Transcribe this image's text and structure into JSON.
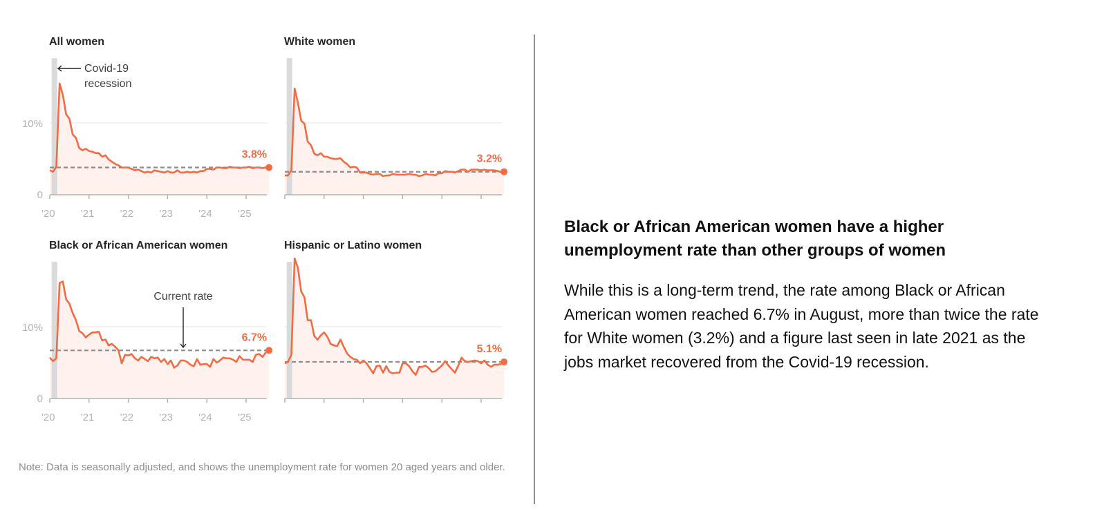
{
  "chart_data": [
    {
      "type": "line",
      "title": "All women",
      "x_start": "2020-01",
      "frequency": "monthly",
      "x_tick_labels": [
        "'20",
        "'21",
        "'22",
        "'23",
        "'24",
        "'25"
      ],
      "y_tick_labels": [
        "0",
        "10%"
      ],
      "ylim": [
        0,
        19.5
      ],
      "current_rate": 3.8,
      "current_label": "3.8%",
      "recession": [
        "2020-02",
        "2020-04"
      ],
      "annotation": [
        "Covid-19",
        "recession"
      ],
      "values": [
        3.4,
        3.2,
        3.9,
        15.5,
        13.9,
        11.2,
        10.6,
        8.4,
        7.9,
        6.5,
        6.2,
        6.4,
        6.1,
        6.0,
        5.8,
        5.8,
        5.3,
        5.5,
        4.9,
        4.6,
        4.3,
        4.1,
        3.8,
        3.8,
        3.8,
        3.6,
        3.4,
        3.5,
        3.3,
        3.1,
        3.2,
        3.1,
        3.4,
        3.3,
        3.2,
        3.1,
        3.3,
        3.1,
        3.1,
        3.4,
        3.1,
        3.1,
        3.2,
        3.1,
        3.2,
        3.1,
        3.3,
        3.3,
        3.6,
        3.6,
        3.5,
        3.8,
        3.8,
        3.7,
        3.7,
        3.9,
        3.8,
        3.8,
        3.7,
        3.8,
        3.8,
        3.9,
        3.7,
        3.8,
        3.8,
        3.7,
        3.8,
        3.8
      ]
    },
    {
      "type": "line",
      "title": "White women",
      "x_start": "2020-01",
      "frequency": "monthly",
      "x_tick_labels": [
        "'20",
        "'21",
        "'22",
        "'23",
        "'24",
        "'25"
      ],
      "y_tick_labels": [
        "0",
        "10%"
      ],
      "ylim": [
        0,
        19.5
      ],
      "current_rate": 3.2,
      "current_label": "3.2%",
      "recession": [
        "2020-02",
        "2020-04"
      ],
      "values": [
        2.7,
        2.7,
        3.4,
        14.8,
        12.8,
        10.3,
        9.9,
        7.4,
        6.9,
        5.7,
        5.5,
        5.8,
        5.3,
        5.3,
        5.1,
        5.0,
        5.0,
        5.1,
        4.6,
        4.3,
        3.8,
        3.9,
        3.8,
        3.1,
        3.1,
        3.1,
        2.9,
        2.8,
        2.9,
        2.9,
        2.6,
        2.7,
        2.7,
        2.9,
        2.8,
        2.8,
        2.8,
        2.8,
        2.9,
        2.8,
        2.8,
        2.6,
        2.7,
        2.9,
        2.8,
        2.8,
        2.7,
        3.0,
        3.0,
        3.3,
        3.2,
        3.2,
        3.1,
        3.3,
        3.5,
        3.5,
        3.2,
        3.5,
        3.5,
        3.5,
        3.4,
        3.5,
        3.4,
        3.4,
        3.4,
        3.3,
        3.2,
        3.2
      ]
    },
    {
      "type": "line",
      "title": "Black or African American women",
      "x_start": "2020-01",
      "frequency": "monthly",
      "x_tick_labels": [
        "'20",
        "'21",
        "'22",
        "'23",
        "'24",
        "'25"
      ],
      "y_tick_labels": [
        "0",
        "10%"
      ],
      "ylim": [
        0,
        19.5
      ],
      "current_rate": 6.7,
      "current_label": "6.7%",
      "recession": [
        "2020-02",
        "2020-04"
      ],
      "annotation": [
        "Current rate"
      ],
      "values": [
        5.7,
        5.2,
        5.6,
        16.1,
        16.3,
        13.8,
        13.2,
        11.9,
        10.9,
        9.4,
        9.1,
        8.5,
        8.9,
        9.2,
        9.2,
        9.3,
        8.1,
        8.2,
        7.4,
        7.6,
        7.2,
        6.7,
        4.9,
        6.1,
        6.0,
        6.2,
        5.6,
        5.3,
        5.8,
        5.5,
        5.2,
        5.8,
        5.6,
        5.7,
        5.1,
        5.5,
        4.8,
        5.3,
        4.3,
        4.6,
        5.3,
        5.3,
        5.1,
        4.7,
        4.5,
        5.5,
        4.7,
        4.8,
        4.8,
        4.4,
        5.5,
        5.0,
        5.3,
        5.7,
        5.6,
        5.6,
        5.4,
        5.1,
        5.9,
        5.4,
        5.4,
        5.4,
        5.1,
        6.1,
        6.2,
        5.8,
        6.4,
        6.7
      ]
    },
    {
      "type": "line",
      "title": "Hispanic or Latino women",
      "x_start": "2020-01",
      "frequency": "monthly",
      "x_tick_labels": [
        "'20",
        "'21",
        "'22",
        "'23",
        "'24",
        "'25"
      ],
      "y_tick_labels": [
        "0",
        "10%"
      ],
      "ylim": [
        0,
        19.5
      ],
      "current_rate": 5.1,
      "current_label": "5.1%",
      "recession": [
        "2020-02",
        "2020-04"
      ],
      "values": [
        4.9,
        5.1,
        6.1,
        19.5,
        18.2,
        14.9,
        14.1,
        10.9,
        10.9,
        8.7,
        8.2,
        8.8,
        9.2,
        8.6,
        7.6,
        7.4,
        7.3,
        8.2,
        7.2,
        6.3,
        5.8,
        5.5,
        5.4,
        4.9,
        5.3,
        4.9,
        4.2,
        3.5,
        4.5,
        4.6,
        3.6,
        4.5,
        3.7,
        3.5,
        3.6,
        3.6,
        4.9,
        4.9,
        4.5,
        3.8,
        3.3,
        4.4,
        4.4,
        4.6,
        4.2,
        3.7,
        3.8,
        4.2,
        4.6,
        5.2,
        4.6,
        4.1,
        3.6,
        4.6,
        5.7,
        5.2,
        5.1,
        5.2,
        5.3,
        5.2,
        4.9,
        5.3,
        4.7,
        4.4,
        4.7,
        4.7,
        4.8,
        5.1
      ]
    }
  ],
  "note": "Note: Data is seasonally adjusted, and shows the unemployment rate for women 20 aged years and older.",
  "article": {
    "headline": "Black or African American women have a higher unemployment rate than other groups of women",
    "body": "While this is a long-term trend, the rate among Black or African American women reached 6.7% in August, more than twice the rate for White women (3.2%) and a figure last seen in late 2021 as the jobs market recovered from the Covid-19 recession."
  },
  "colors": {
    "line": "#f26b43",
    "area": "#fef1ee",
    "recession": "#d6d6d6",
    "dashed": "#8c8c8c",
    "grid": "#e6e6e6",
    "axis": "#b3b3b3"
  }
}
